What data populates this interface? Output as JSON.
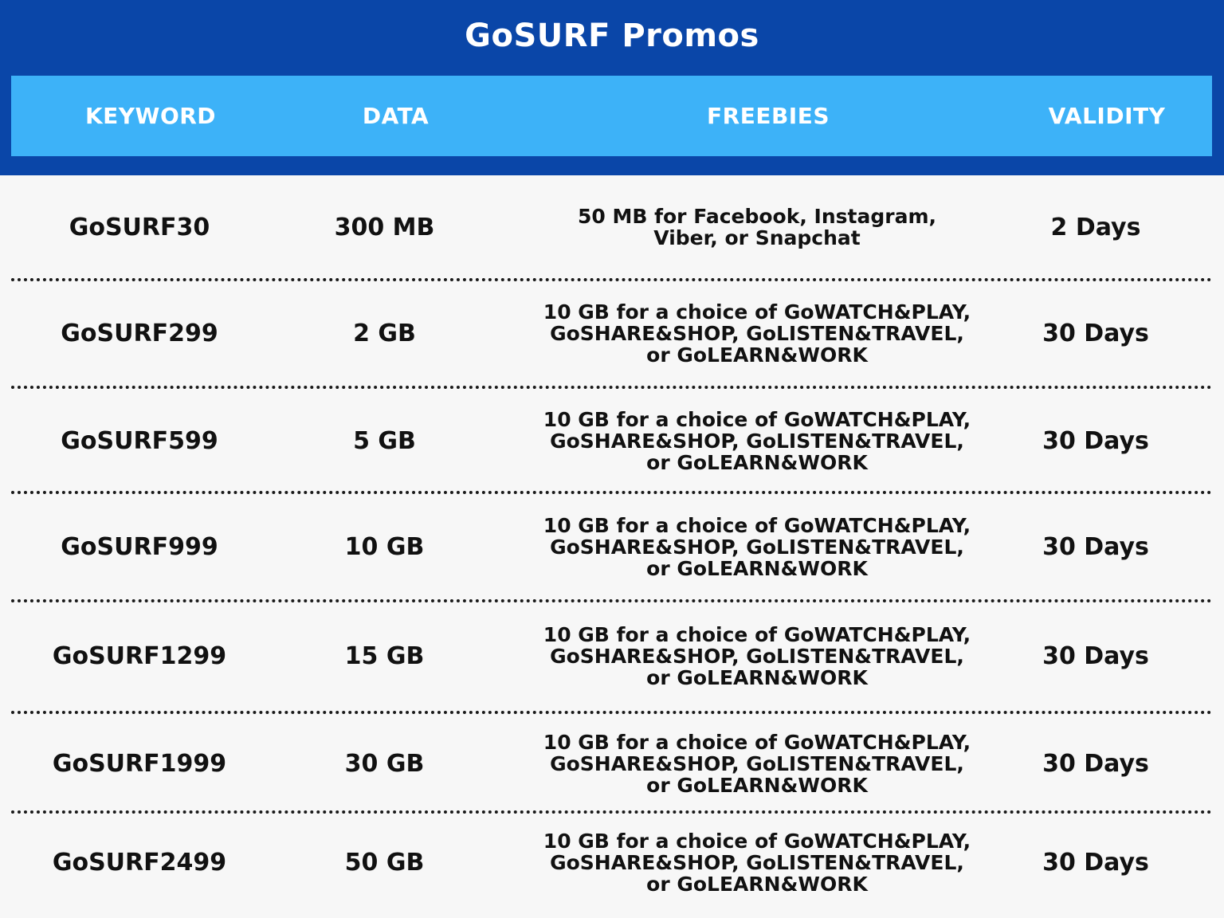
{
  "title": "GoSURF Promos",
  "headers": {
    "keyword": "KEYWORD",
    "data": "DATA",
    "freebies": "FREEBIES",
    "validity": "VALIDITY"
  },
  "rows": [
    {
      "keyword": "GoSURF30",
      "data": "300 MB",
      "freebies": "50 MB for Facebook, Instagram,\nViber, or Snapchat",
      "validity": "2 Days"
    },
    {
      "keyword": "GoSURF299",
      "data": "2 GB",
      "freebies": "10 GB for a choice of GoWATCH&PLAY,\nGoSHARE&SHOP, GoLISTEN&TRAVEL,\nor GoLEARN&WORK",
      "validity": "30 Days"
    },
    {
      "keyword": "GoSURF599",
      "data": "5 GB",
      "freebies": "10 GB for a choice of GoWATCH&PLAY,\nGoSHARE&SHOP, GoLISTEN&TRAVEL,\nor GoLEARN&WORK",
      "validity": "30 Days"
    },
    {
      "keyword": "GoSURF999",
      "data": "10 GB",
      "freebies": "10 GB for a choice of GoWATCH&PLAY,\nGoSHARE&SHOP, GoLISTEN&TRAVEL,\nor GoLEARN&WORK",
      "validity": "30 Days"
    },
    {
      "keyword": "GoSURF1299",
      "data": "15 GB",
      "freebies": "10 GB for a choice of GoWATCH&PLAY,\nGoSHARE&SHOP, GoLISTEN&TRAVEL,\nor GoLEARN&WORK",
      "validity": "30 Days"
    },
    {
      "keyword": "GoSURF1999",
      "data": "30 GB",
      "freebies": "10 GB for a choice of GoWATCH&PLAY,\nGoSHARE&SHOP, GoLISTEN&TRAVEL,\nor GoLEARN&WORK",
      "validity": "30 Days"
    },
    {
      "keyword": "GoSURF2499",
      "data": "50 GB",
      "freebies": "10 GB for a choice of GoWATCH&PLAY,\nGoSHARE&SHOP, GoLISTEN&TRAVEL,\nor GoLEARN&WORK",
      "validity": "30 Days"
    }
  ]
}
